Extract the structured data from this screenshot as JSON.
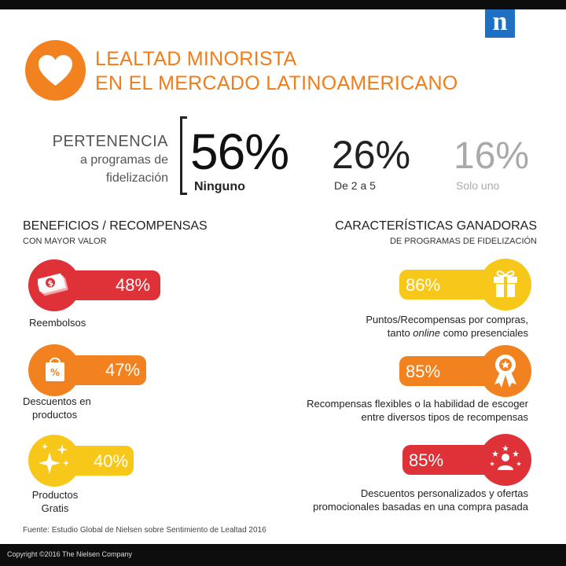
{
  "header": {
    "title_line1": "LEALTAD MINORISTA",
    "title_line2": "EN EL MERCADO LATINOAMERICANO",
    "logo_letter": "n",
    "icon": "heart-icon"
  },
  "membership": {
    "label_line1": "PERTENENCIA",
    "label_line2": "a programas de",
    "label_line3": "fidelización",
    "stats": [
      {
        "value": "56%",
        "label": "Ninguno"
      },
      {
        "value": "26%",
        "label": "De 2 a 5"
      },
      {
        "value": "16%",
        "label": "Solo uno"
      }
    ]
  },
  "benefits": {
    "title": "BENEFICIOS / RECOMPENSAS",
    "subtitle": "CON MAYOR VALOR",
    "items": [
      {
        "value": "48%",
        "label_line1": "Reembolsos",
        "label_line2": "",
        "icon": "money-icon",
        "color": "#df3238"
      },
      {
        "value": "47%",
        "label_line1": "Descuentos en",
        "label_line2": "productos",
        "icon": "shopping-bag-icon",
        "color": "#f2821f"
      },
      {
        "value": "40%",
        "label_line1": "Productos",
        "label_line2": "Gratis",
        "icon": "sparkle-icon",
        "color": "#f7c81a"
      }
    ]
  },
  "features": {
    "title": "CARACTERÍSTICAS GANADORAS",
    "subtitle": "DE PROGRAMAS DE FIDELIZACIÓN",
    "items": [
      {
        "value": "86%",
        "label_line1": "Puntos/Recompensas por compras,",
        "label_line2_pre": "tanto ",
        "label_line2_em": "online",
        "label_line2_post": " como presenciales",
        "icon": "gift-icon",
        "color": "#f7c81a"
      },
      {
        "value": "85%",
        "label_line1": "Recompensas flexibles o la habilidad de escoger",
        "label_line2": "entre diversos tipos de recompensas",
        "icon": "award-ribbon-icon",
        "color": "#f2821f"
      },
      {
        "value": "85%",
        "label_line1": "Descuentos personalizados y ofertas",
        "label_line2": "promocionales basadas en una compra pasada",
        "icon": "person-stars-icon",
        "color": "#df3238"
      }
    ]
  },
  "source": "Fuente: Estudio Global de Nielsen sobre Sentimiento de Lealtad 2016",
  "footer": {
    "copyright": "Copyright ©2016 The Nielsen Company"
  }
}
